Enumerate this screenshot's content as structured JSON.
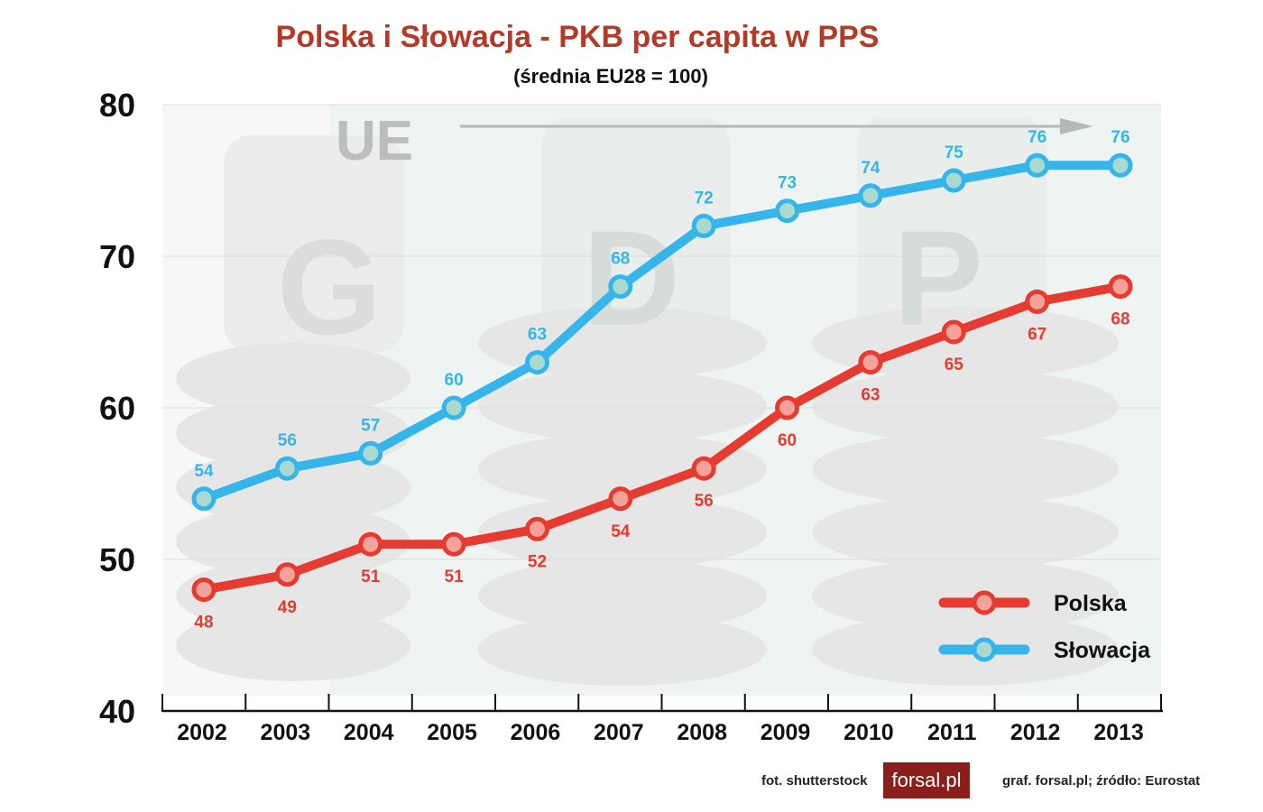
{
  "title": "Polska i Słowacja - PKB per capita w PPS",
  "subtitle": "(średnia EU28 = 100)",
  "background_text": {
    "ue": "UE",
    "letters": [
      "G",
      "D",
      "P"
    ]
  },
  "credits": {
    "photo": "fot. shutterstock",
    "logo": "forsal.pl",
    "source": "graf. forsal.pl;  źródło: Eurostat"
  },
  "colors": {
    "polska": "#e63b31",
    "slowacja": "#36b5ea",
    "title": "#b23a26"
  },
  "chart_data": {
    "type": "line",
    "x": [
      "2002",
      "2003",
      "2004",
      "2005",
      "2006",
      "2007",
      "2008",
      "2009",
      "2010",
      "2011",
      "2012",
      "2013"
    ],
    "ylim": [
      40,
      80
    ],
    "yticks": [
      40,
      50,
      60,
      70,
      80
    ],
    "grid": true,
    "legend_position": "bottom-right",
    "series": [
      {
        "name": "Polska",
        "values": [
          48,
          49,
          51,
          51,
          52,
          54,
          56,
          60,
          63,
          65,
          67,
          68
        ]
      },
      {
        "name": "Słowacja",
        "values": [
          54,
          56,
          57,
          60,
          63,
          68,
          72,
          73,
          74,
          75,
          76,
          76
        ]
      }
    ]
  }
}
